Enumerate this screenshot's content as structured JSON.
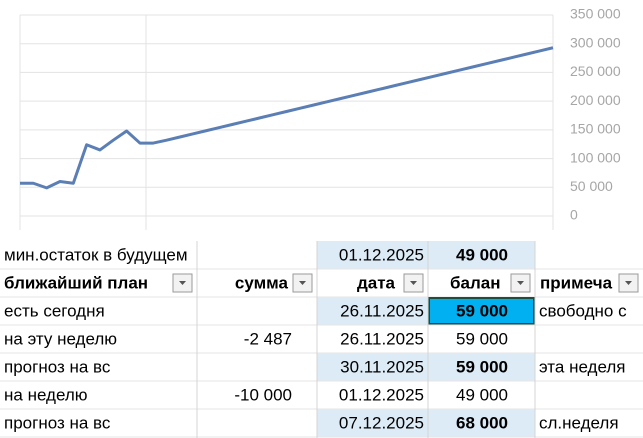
{
  "chart_data": {
    "type": "line",
    "categories": [
      null,
      null,
      null,
      null,
      null,
      null,
      null,
      null,
      null,
      null,
      null,
      null,
      null,
      null,
      null,
      null,
      null,
      null,
      null,
      null,
      null,
      null,
      null,
      null,
      null,
      null,
      null,
      null,
      null,
      null,
      null,
      null,
      null,
      null,
      null,
      null,
      null,
      null,
      null,
      null,
      null
    ],
    "series": [
      {
        "color": "#5b7fb5",
        "values": [
          57000,
          57000,
          49000,
          60000,
          57000,
          124000,
          115000,
          132000,
          148000,
          127000,
          127000,
          132000,
          137550,
          143100,
          148650,
          154200,
          159750,
          165300,
          170850,
          176400,
          181950,
          187500,
          193050,
          198600,
          204150,
          209700,
          215250,
          220800,
          226350,
          231900,
          237450,
          243000,
          248550,
          254100,
          259650,
          265200,
          270750,
          276300,
          281850,
          287400,
          292950
        ]
      }
    ],
    "ylim": [
      0,
      350000
    ],
    "yticks": [
      0,
      {
        "value": 50000,
        "label": "50 000"
      },
      {
        "value": 100000,
        "label": "100 000"
      },
      {
        "value": 150000,
        "label": "150 000"
      },
      {
        "value": 200000,
        "label": "200 000"
      },
      {
        "value": 250000,
        "label": "250 000"
      },
      {
        "value": 300000,
        "label": "300 000"
      },
      {
        "value": 350000,
        "label": "350 000"
      }
    ],
    "grid": true
  },
  "table": {
    "summary": [
      "мин.остаток в будущем",
      null,
      "01.12.2025",
      "49 000",
      null
    ],
    "header": [
      "ближайший план",
      "сумма",
      "дата",
      "балан",
      "примеча"
    ],
    "rows": [
      [
        "есть сегодня",
        null,
        "26.11.2025",
        "59 000",
        "свободно с"
      ],
      [
        "на эту неделю",
        "-2 487",
        "26.11.2025",
        "59 000",
        null
      ],
      [
        "прогноз на вс",
        null,
        "30.11.2025",
        "59 000",
        "эта неделя"
      ],
      [
        "на неделю",
        "-10 000",
        "01.12.2025",
        "49 000",
        null
      ],
      [
        "прогноз на вс",
        null,
        "07.12.2025",
        "68 000",
        "сл.неделя"
      ]
    ]
  }
}
